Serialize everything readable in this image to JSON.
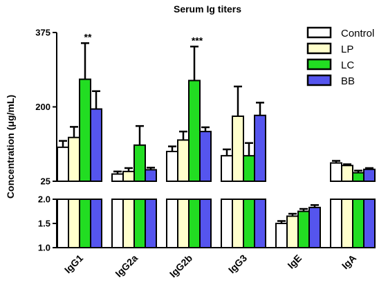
{
  "chart_data": {
    "type": "bar",
    "title": "Serum Ig titers",
    "ylabel": "Concentration (μg/mL)",
    "xlabel": "",
    "categories": [
      "IgG1",
      "IgG2a",
      "IgG2b",
      "IgG3",
      "IgE",
      "IgA"
    ],
    "y_axis_segments": [
      {
        "ylim": [
          1.0,
          2.0
        ],
        "ticks": [
          "1.0",
          "1.5",
          "2.0"
        ]
      },
      {
        "ylim": [
          25,
          375
        ],
        "ticks": [
          "25",
          "200",
          "375"
        ]
      }
    ],
    "series": [
      {
        "name": "Control",
        "color": "#ffffff",
        "values": [
          105,
          42,
          95,
          85,
          1.5,
          68
        ],
        "errors": [
          15,
          6,
          12,
          15,
          0.05,
          5
        ]
      },
      {
        "name": "LP",
        "color": "#ffffcc",
        "values": [
          128,
          48,
          122,
          178,
          1.65,
          62
        ],
        "errors": [
          25,
          8,
          20,
          70,
          0.05,
          3
        ]
      },
      {
        "name": "LC",
        "color": "#22dd22",
        "values": [
          265,
          110,
          262,
          85,
          1.75,
          45
        ],
        "errors": [
          85,
          45,
          80,
          30,
          0.05,
          5
        ]
      },
      {
        "name": "BB",
        "color": "#5555ee",
        "values": [
          195,
          52,
          142,
          180,
          1.83,
          53
        ],
        "errors": [
          42,
          5,
          10,
          30,
          0.05,
          3
        ]
      }
    ],
    "annotations": [
      {
        "category": "IgG1",
        "text": "**"
      },
      {
        "category": "IgG2b",
        "text": "***"
      }
    ],
    "legend": {
      "position": "top-right",
      "entries": [
        "Control",
        "LP",
        "LC",
        "BB"
      ]
    },
    "grid": false
  }
}
